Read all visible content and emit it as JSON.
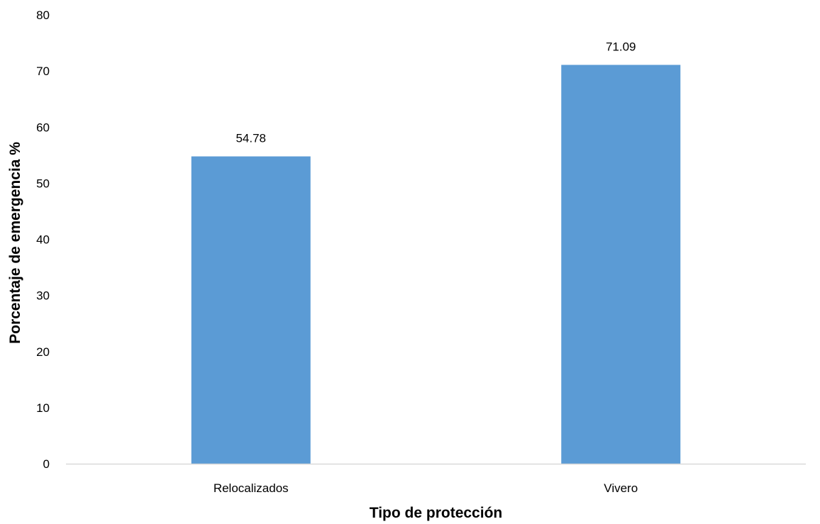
{
  "chart_data": {
    "type": "bar",
    "title": "",
    "categories": [
      "Relocalizados",
      "Vivero"
    ],
    "values": [
      54.78,
      71.09
    ],
    "data_labels": [
      "54.78",
      "71.09"
    ],
    "xlabel": "Tipo de protección",
    "ylabel": "Porcentaje de emergencia %",
    "ylim": [
      0,
      80
    ],
    "yticks": [
      0,
      10,
      20,
      30,
      40,
      50,
      60,
      70,
      80
    ],
    "grid": false,
    "legend": "none",
    "colors": {
      "bar": "#5B9BD5",
      "axis": "#D9D9D9",
      "text": "#000000"
    }
  }
}
